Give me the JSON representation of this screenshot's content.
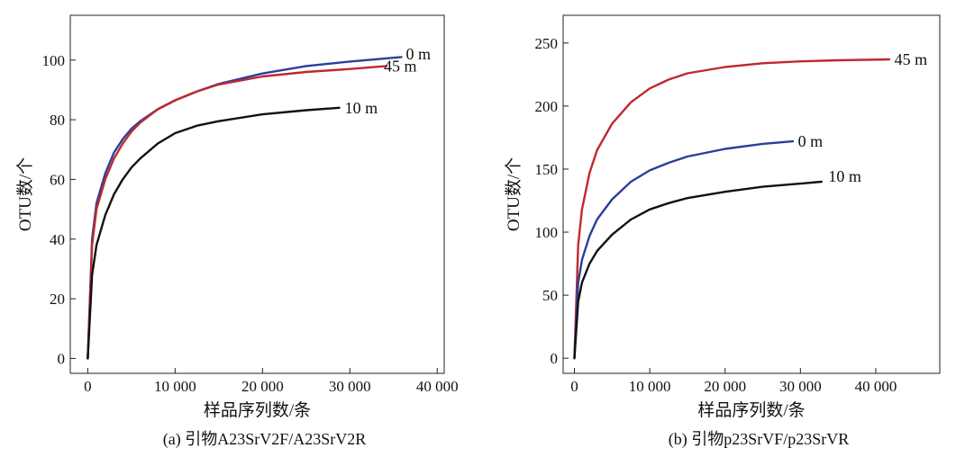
{
  "chart_data": [
    {
      "type": "line",
      "caption": "(a) 引物A23SrV2F/A23SrV2R",
      "xlabel": "样品序列数/条",
      "ylabel": "OTU数/个",
      "xlim": [
        -2000,
        40800
      ],
      "ylim": [
        -5,
        115
      ],
      "xticks": [
        0,
        10000,
        20000,
        30000,
        40000
      ],
      "xtick_labels": [
        "0",
        "10 000",
        "20 000",
        "30 000",
        "40 000"
      ],
      "yticks": [
        0,
        20,
        40,
        60,
        80,
        100
      ],
      "ytick_labels": [
        "0",
        "20",
        "40",
        "60",
        "80",
        "100"
      ],
      "series": [
        {
          "name": "0 m",
          "color": "#2a3f9a",
          "x": [
            0,
            500,
            1000,
            2000,
            3000,
            4000,
            5000,
            6000,
            8000,
            10000,
            12500,
            15000,
            20000,
            25000,
            30000,
            35900
          ],
          "y": [
            0,
            40,
            52,
            62,
            69,
            73.5,
            77,
            79.5,
            83.5,
            86.5,
            89.5,
            92,
            95.5,
            98,
            99.5,
            101
          ]
        },
        {
          "name": "45 m",
          "color": "#c0282d",
          "x": [
            0,
            500,
            1000,
            2000,
            3000,
            4000,
            5000,
            6000,
            8000,
            10000,
            12500,
            15000,
            20000,
            25000,
            30000,
            34200
          ],
          "y": [
            0,
            38,
            50,
            60,
            67,
            72,
            76,
            79,
            83.5,
            86.5,
            89.5,
            91.8,
            94.5,
            96,
            97,
            98
          ]
        },
        {
          "name": "10 m",
          "color": "#111111",
          "x": [
            0,
            500,
            1000,
            2000,
            3000,
            4000,
            5000,
            6000,
            8000,
            10000,
            12500,
            15000,
            20000,
            25000,
            28800
          ],
          "y": [
            0,
            28,
            38,
            48,
            55,
            60,
            64,
            67,
            72,
            75.5,
            78,
            79.5,
            81.8,
            83.2,
            84
          ]
        }
      ],
      "label_points": [
        [
          36000,
          102
        ],
        [
          34300,
          98
        ],
        [
          29000,
          84
        ]
      ]
    },
    {
      "type": "line",
      "caption": "(b) 引物p23SrVF/p23SrVR",
      "xlabel": "样品序列数/条",
      "ylabel": "OTU数/个",
      "xlim": [
        -1500,
        48500
      ],
      "ylim": [
        -12,
        272
      ],
      "xticks": [
        0,
        10000,
        20000,
        30000,
        40000
      ],
      "xtick_labels": [
        "0",
        "10 000",
        "20 000",
        "30 000",
        "40 000"
      ],
      "yticks": [
        0,
        50,
        100,
        150,
        200,
        250
      ],
      "ytick_labels": [
        "0",
        "50",
        "100",
        "150",
        "200",
        "250"
      ],
      "series": [
        {
          "name": "45 m",
          "color": "#c0282d",
          "x": [
            0,
            500,
            1000,
            2000,
            3000,
            5000,
            7500,
            10000,
            12500,
            15000,
            20000,
            25000,
            30000,
            35000,
            41800
          ],
          "y": [
            0,
            90,
            118,
            147,
            165,
            186,
            203,
            214,
            221,
            226,
            231,
            234,
            235.5,
            236.3,
            237
          ]
        },
        {
          "name": "0 m",
          "color": "#2a3f9a",
          "x": [
            0,
            500,
            1000,
            2000,
            3000,
            5000,
            7500,
            10000,
            12500,
            15000,
            20000,
            25000,
            29000
          ],
          "y": [
            0,
            60,
            78,
            97,
            110,
            126,
            140,
            149,
            155,
            160,
            166,
            170,
            172
          ]
        },
        {
          "name": "10 m",
          "color": "#111111",
          "x": [
            0,
            500,
            1000,
            2000,
            3000,
            5000,
            7500,
            10000,
            12500,
            15000,
            20000,
            25000,
            30000,
            32800
          ],
          "y": [
            0,
            45,
            60,
            75,
            85,
            98,
            110,
            118,
            123,
            127,
            132,
            136,
            138.5,
            140
          ]
        }
      ],
      "label_points": [
        [
          42000,
          237
        ],
        [
          29200,
          172
        ],
        [
          33000,
          140
        ]
      ]
    }
  ]
}
